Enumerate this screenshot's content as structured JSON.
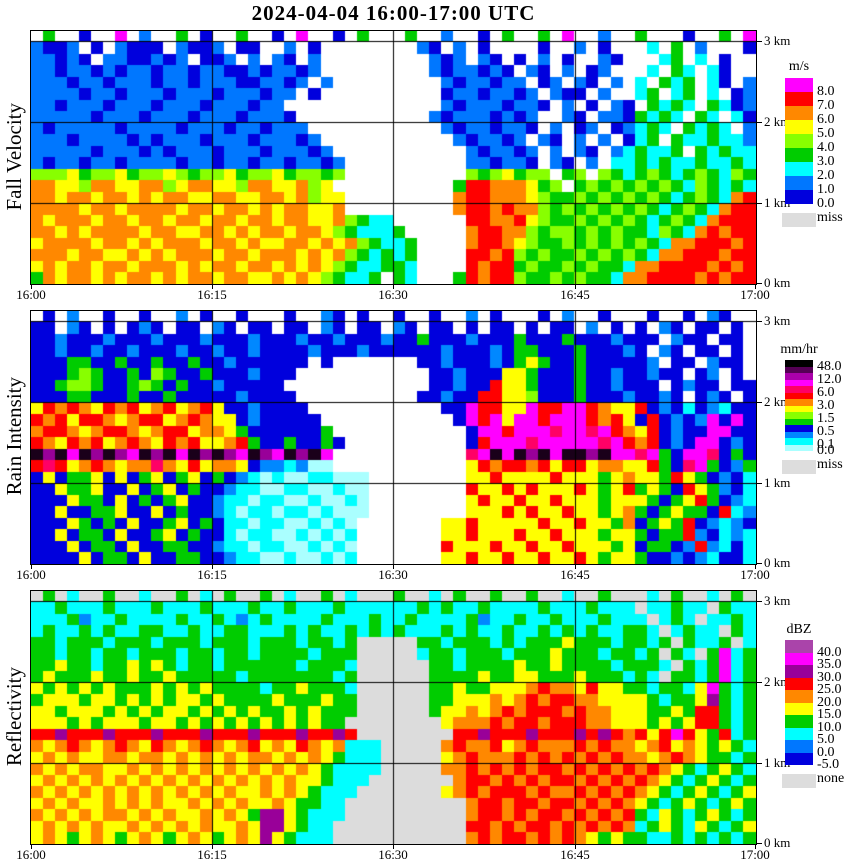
{
  "title": "2024-04-04  16:00-17:00 UTC",
  "x_ticks": [
    "16:00",
    "16:15",
    "16:30",
    "16:45",
    "17:00"
  ],
  "y_ticks": [
    "3 km",
    "2 km",
    "1 km",
    "0 km"
  ],
  "chart_data": [
    {
      "type": "heatmap",
      "name": "fall-velocity",
      "axis_label": "Fall Velocity",
      "x_range": [
        "16:00",
        "17:00"
      ],
      "y_range_km": [
        0,
        3.1
      ],
      "grid_on": true,
      "legend": {
        "title": "m/s",
        "cells": [
          [
            "#FF00FF",
            "8.0"
          ],
          [
            "#FF0000",
            "7.0"
          ],
          [
            "#FF8800",
            "6.0"
          ],
          [
            "#FFFF00",
            "5.0"
          ],
          [
            "#88FF00",
            "4.0"
          ],
          [
            "#00CC00",
            "3.0"
          ],
          [
            "#00FFFF",
            "2.0"
          ],
          [
            "#0077FF",
            "1.0"
          ],
          [
            "#0000DD",
            "0.0"
          ]
        ],
        "miss": [
          "#DDDDDD",
          "miss"
        ]
      },
      "palette": {
        ".": "#FFFFFF",
        "1": "#0000DD",
        "2": "#0077FF",
        "3": "#00FFFF",
        "4": "#00CC00",
        "5": "#88FF00",
        "6": "#FFFF00",
        "7": "#FF8800",
        "8": "#FF0000",
        "9": "#FF00FF"
      },
      "grid": [
        [
          ".4..1..9.2",
          "..4.1..4..",
          "1.9..1.4..",
          ".4..2..1.4",
          "..4.9..2..",
          "4...1..4.9"
        ],
        [
          "2112.1.211",
          "1.2112.11.",
          ".2.1......",
          "..21.2.1..",
          "..1..2.1..",
          ".3.4.2...1"
        ],
        [
          "22121.2211",
          "212.112.2.",
          "21.2......",
          "...212.21.",
          "1.2.1..21.",
          "..34.3.1.."
        ],
        [
          "2212212122",
          "1221221121",
          "2212......",
          "...2122121",
          ".21.2.12..",
          ".3.43.31.."
        ],
        [
          "2221221222",
          "1221222112",
          "212.2.....",
          "....212212",
          "2.12.21.2.",
          "3.434.31.2"
        ],
        [
          "2222122122",
          "2122212221",
          "22.1......",
          "....122122",
          "12.211.2..",
          "34.34.3.12"
        ],
        [
          "2212221222",
          "1222122212",
          "2.........",
          "....212221",
          "221.2.1.21",
          ".4343.4312"
        ],
        [
          "2222212221",
          "2221222122",
          "21........",
          "...2122212",
          "12..21.221",
          "4343.43.31"
        ],
        [
          "2122222122",
          "2212221221",
          "222.......",
          "....212212",
          "21.2.12.12",
          "343.4343.2"
        ],
        [
          "2221222212",
          "1222122212",
          "2212......",
          ".....21221",
          "2.21.2.2.1",
          "34.4334332"
        ],
        [
          "2222212221",
          "2122212221",
          "22212.....",
          "......2122",
          "12.2.21.23",
          "4334.43433"
        ],
        [
          "2122122122",
          "2212212212",
          "212212....",
          "......2212",
          "21.21.2.33",
          "4343343343"
        ],
        [
          "5556455645",
          "5654556455",
          "645545....",
          "......5456",
          "455.45.543",
          "4543454354"
        ],
        [
          "7766577667",
          "7567766577",
          "66756.....",
          ".....48877",
          "7645.45454",
          "5454354343"
        ],
        [
          "7767767767",
          "6776677667",
          "767566....",
          ".....78877",
          "7654454545",
          "4543454378"
        ],
        [
          "7777677677",
          "7767767767",
          "677667....",
          ".....78878",
          "7754545454",
          "5434543788"
        ],
        [
          "7677767767",
          "7677677677",
          "6776675433",
          "......8877",
          "8654454545",
          "4345437888"
        ],
        [
          "7767677776",
          "7766776767",
          "7677654333",
          "4.....7887",
          "7545545454",
          "4354378788"
        ],
        [
          "6777767767",
          "6777677676",
          "6776767543",
          "34....7887",
          "6544545454",
          "5437788878"
        ],
        [
          "7776776676",
          "7677767767",
          "7767675434",
          "34....8878",
          "5454454545",
          "4377888788"
        ],
        [
          "6767767767",
          "7767677677",
          "6767654334",
          "43....8788",
          "4544545443",
          "7788887878"
        ],
        [
          "4767767677",
          "6767767766",
          "767654334.",
          "43...48788",
          "5445454437",
          "7888878788"
        ]
      ]
    },
    {
      "type": "heatmap",
      "name": "rain-intensity",
      "axis_label": "Rain Intensity",
      "x_range": [
        "16:00",
        "17:00"
      ],
      "y_range_km": [
        0,
        3.1
      ],
      "grid_on": true,
      "legend": {
        "title": "mm/hr",
        "cells": [
          [
            "#000000",
            "48.0"
          ],
          [
            "#550055",
            null
          ],
          [
            "#AA00AA",
            "12.0"
          ],
          [
            "#FF00FF",
            null
          ],
          [
            "#FF0066",
            "6.0"
          ],
          [
            "#FF0000",
            null
          ],
          [
            "#FF8800",
            "3.0"
          ],
          [
            "#FFFF00",
            null
          ],
          [
            "#88FF00",
            "1.5"
          ],
          [
            "#00CC00",
            null
          ],
          [
            "#0000DD",
            "0.5"
          ],
          [
            "#0088FF",
            null
          ],
          [
            "#00FFFF",
            "0.1"
          ],
          [
            "#AAFFFF",
            "0.0"
          ]
        ],
        "miss": [
          "#DDDDDD",
          "miss"
        ]
      },
      "palette": {
        ".": "#FFFFFF",
        "1": "#AAFFFF",
        "2": "#00FFFF",
        "3": "#0088FF",
        "4": "#0000DD",
        "5": "#00CC00",
        "6": "#88FF00",
        "7": "#FFFF00",
        "8": "#FF8800",
        "9": "#FF0000",
        "a": "#FF0066",
        "b": "#FF00FF",
        "c": "#990099",
        "d": "#1A001A"
      },
      "grid": [
        [
          ".4.3..4..4",
          "..3.4..4..",
          ".4..34.4..",
          "4..4..3.4.",
          "..4.3..4..",
          ".4..4.34.."
        ],
        [
          "44.34.4.43",
          "4.44.34.44",
          ".44.34.44.",
          "34.44.4.44",
          ".4.44.3.4.",
          "4.34.44.4."
        ],
        [
          "4434443444",
          "3444344434",
          "4434434443",
          "4454443444",
          "5444544434",
          "44.344.44."
        ],
        [
          "4434434434",
          "4434434434",
          "4443444344",
          "4444344434",
          "5544454443",
          "4.34.44.4."
        ],
        [
          "4445544544",
          "5445443444",
          "444.4.....",
          "..44344434",
          "5754454444",
          "43.44.344."
        ],
        [
          "4445654454",
          "6544544434",
          "44........",
          "...4434447",
          "7544454434",
          "4344.43.4."
        ],
        [
          "4456654456",
          "5454434444",
          "4.........",
          "...4434497",
          "7544454434",
          "44.4344.44"
        ],
        [
          "4445544454",
          "4544444344",
          "44........",
          "..44344997",
          "7644454443",
          "4434.434.4"
        ],
        [
          "7989879897",
          "8978974434",
          "444.......",
          "....44b997",
          "7b99bb9877",
          "9434243244"
        ],
        [
          "9897998789",
          "9789877434",
          "4444......",
          ".....4b9b7",
          "bb9bbb9897",
          "494343b4b4"
        ],
        [
          "8998789987",
          "8997887544",
          "44445.....",
          "......4bb9",
          "bbbabbab98",
          "794344bb44"
        ],
        [
          "9879897898",
          "7989778954",
          "454454....",
          "......49bb",
          "babbbbbab9",
          "89434bb434"
        ],
        [
          "dcdbdcdcbd",
          "cdbdcdcbdc",
          "bdcdb.....",
          "......abdb",
          "dcdbddcdbb",
          "ab54bba454"
        ],
        [
          "9a97898788",
          "a879788743",
          "32311.....",
          "......7989",
          "9897997887",
          "7954ab5435"
        ],
        [
          "4745574745",
          "7457454321",
          "21122111..",
          "......7797",
          "7779777578",
          "7759754342"
        ],
        [
          "4475574474",
          "5745443221",
          "12211211..",
          "......9779",
          "7977797579",
          "5754975342"
        ],
        [
          "4447554745",
          "4574432212",
          "21121121..",
          "......7977",
          "9779777577",
          "7545795432"
        ],
        [
          "4474455744",
          "7454432122",
          "12212111..",
          "......7779",
          "7977977578",
          "5457554923"
        ],
        [
          "4447545474",
          "4574542212",
          "2112121...",
          "....779777",
          "7797797758",
          "4575943234"
        ],
        [
          "4474554744",
          "5745442122",
          "1121212...",
          "....779777",
          "9779777577",
          "5455934232"
        ],
        [
          "4447455474",
          "4554432212",
          "2112121...",
          "....977797",
          "7977977757",
          "4554393242"
        ],
        [
          "4444745547",
          "4455443221",
          "1211212...",
          "....779779",
          "7797797577",
          "5443432442"
        ]
      ]
    },
    {
      "type": "heatmap",
      "name": "reflectivity",
      "axis_label": "Reflectivity",
      "x_range": [
        "16:00",
        "17:00"
      ],
      "y_range_km": [
        0,
        3.1
      ],
      "grid_on": true,
      "legend": {
        "title": "dBZ",
        "cells": [
          [
            "#AA44AA",
            "40.0"
          ],
          [
            "#FF00FF",
            "35.0"
          ],
          [
            "#990099",
            "30.0"
          ],
          [
            "#FF0000",
            "25.0"
          ],
          [
            "#FF8800",
            "20.0"
          ],
          [
            "#FFFF00",
            "15.0"
          ],
          [
            "#00CC00",
            "10.0"
          ],
          [
            "#00FFFF",
            "5.0"
          ],
          [
            "#0077FF",
            "0.0"
          ],
          [
            "#0000DD",
            "-5.0"
          ]
        ],
        "miss": [
          "#DDDDDD",
          "none"
        ]
      },
      "palette": {
        "_": "#DCDCDC",
        "1": "#0000DD",
        "2": "#0088FF",
        "3": "#00FFFF",
        "4": "#00CC00",
        "5": "#FFFF00",
        "6": "#FF8800",
        "7": "#FF0000",
        "8": "#990099",
        "9": "#FF00FF",
        "a": "#AA44AA"
      },
      "grid": [
        [
          "_4_3__4__3",
          "__4_3_4__4",
          "_3__4_3___",
          "4__3_4__4_",
          "_4__3__4__",
          "_3_4__3_4_"
        ],
        [
          "3343334333",
          "4333433343",
          "3433343333",
          "3343433433",
          "3343334333",
          "_33433_433"
        ],
        [
          "3334233433",
          "3343343234",
          "3333433343",
          "3433334233",
          "4334333433",
          "3_343_3343"
        ],
        [
          "3433434334",
          "4334334433",
          "3434334343",
          "4333434334",
          "3343434334",
          "43_3433_43"
        ],
        [
          "4434443444",
          "3444344434",
          "4434434___",
          "__44344434",
          "3444544434",
          "434_4334_3"
        ],
        [
          "4434434434",
          "4434434434",
          "4443444___",
          "__34434443",
          "4445444344",
          "34_43_4934"
        ],
        [
          "4454434454",
          "5434434444",
          "4434443___",
          "___4434444",
          "5445444434",
          "443_434934"
        ],
        [
          "4544454454",
          "4544444344",
          "4444434___",
          "___4444544",
          "5544454443",
          "43_4434934"
        ],
        [
          "5454545444",
          "5454544443",
          "4454443___",
          "___4454455",
          "5676657554",
          "4344359434"
        ],
        [
          "4555455454",
          "5455454444",
          "5444544___",
          "___4455565",
          "6767766555",
          "5434458434"
        ],
        [
          "5545554545",
          "4554545454",
          "4545444___",
          "___4556567",
          "6777676655",
          "5445477434"
        ],
        [
          "5554545554",
          "5545454545",
          "454544____",
          "____566676",
          "7767776655",
          "5454577434"
        ],
        [
          "7787778777",
          "8777877787",
          "7787787___",
          "_____77877",
          "7877787876",
          "7579754734"
        ],
        [
          "6567656765",
          "7656765675",
          "657656333_",
          "____676675",
          "6766676766",
          "5675654543"
        ],
        [
          "5656556656",
          "6565656566",
          "565654333_",
          "____567666",
          "7676767676",
          "6567654434"
        ],
        [
          "6565665565",
          "6565656565",
          "656543333_",
          "____667676",
          "7677676767",
          "6765434543"
        ],
        [
          "5656565656",
          "5656565656",
          "56554333__",
          "_____67767",
          "6767767676",
          "7654345434"
        ],
        [
          "6565656565",
          "6565656556",
          "5654333___",
          "____567677",
          "7676676767",
          "6543454345"
        ],
        [
          "5656556565",
          "6556565655",
          "654433____",
          "______6776",
          "7767767676",
          "5434543454"
        ],
        [
          "6565656656",
          "5655656548",
          "854333____",
          "______6776",
          "7677676767",
          "4354345434"
        ],
        [
          "5656565565",
          "6565655658",
          "85433_____",
          "______7767",
          "6776767676",
          "3454354345"
        ],
        [
          "5654565456",
          "5456545658",
          "54333_____",
          "______6767",
          "7676765454",
          "4334343434"
        ]
      ]
    }
  ]
}
